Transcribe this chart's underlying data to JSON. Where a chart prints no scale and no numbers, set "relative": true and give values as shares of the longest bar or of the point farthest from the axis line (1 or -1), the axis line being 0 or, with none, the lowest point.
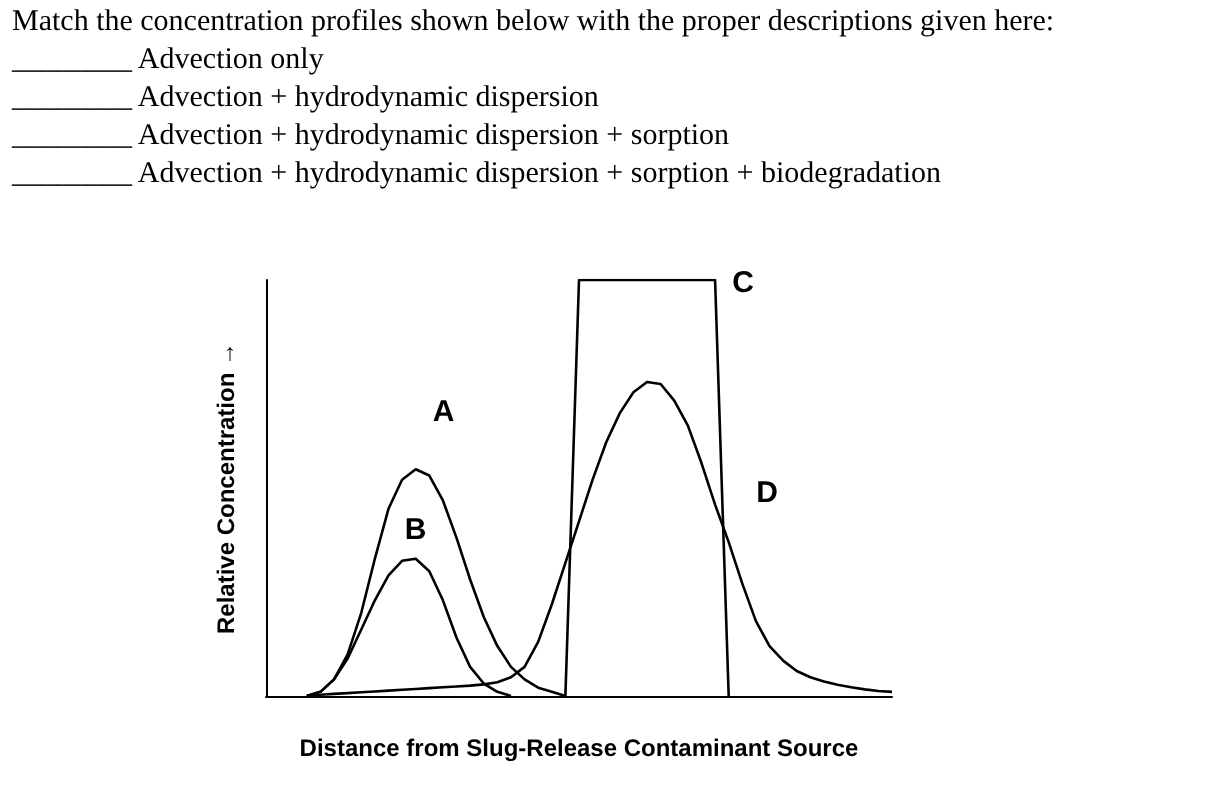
{
  "chart_data": {
    "type": "line",
    "title": "Match the concentration profiles shown below with the proper descriptions given here:",
    "annotations": [
      "________ Advection only",
      "________ Advection + hydrodynamic dispersion",
      "________ Advection + hydrodynamic dispersion + sorption",
      "________ Advection + hydrodynamic dispersion + sorption + biodegradation"
    ],
    "xlabel": "Distance from Slug-Release Contaminant Source",
    "ylabel": "Relative Concentration →",
    "relative": true,
    "marker": "none",
    "line_style": "solid",
    "grid": false,
    "categories": [
      null,
      null,
      null,
      null,
      null,
      null,
      null,
      null,
      null,
      null,
      null,
      null,
      null,
      null,
      null,
      null,
      null,
      null,
      null,
      null,
      null,
      null,
      null,
      null,
      null,
      null,
      null,
      null,
      null,
      null,
      null,
      null,
      null,
      null,
      null,
      null,
      null,
      null,
      null,
      null,
      null,
      null,
      null,
      null,
      null,
      null,
      null
    ],
    "series": [
      {
        "name": "A",
        "color": "#000000",
        "values": [
          null,
          null,
          null,
          0,
          0.01,
          0.04,
          0.1,
          0.2,
          0.33,
          0.45,
          0.52,
          0.545,
          0.53,
          0.47,
          0.38,
          0.28,
          0.19,
          0.12,
          0.07,
          0.04,
          0.02,
          0.01,
          0,
          null,
          null,
          null,
          null,
          null,
          null,
          null,
          null,
          null,
          null,
          null,
          null,
          null,
          null,
          null,
          null,
          null,
          null,
          null,
          null,
          null,
          null,
          null,
          null
        ]
      },
      {
        "name": "B",
        "color": "#000000",
        "values": [
          null,
          null,
          null,
          0,
          0.01,
          0.04,
          0.09,
          0.16,
          0.23,
          0.29,
          0.325,
          0.33,
          0.3,
          0.23,
          0.14,
          0.07,
          0.03,
          0.01,
          0,
          null,
          null,
          null,
          null,
          null,
          null,
          null,
          null,
          null,
          null,
          null,
          null,
          null,
          null,
          null,
          null,
          null,
          null,
          null,
          null,
          null,
          null,
          null,
          null,
          null,
          null,
          null,
          null
        ]
      },
      {
        "name": "C",
        "color": "#000000",
        "values": [
          null,
          null,
          null,
          null,
          null,
          null,
          null,
          null,
          null,
          null,
          null,
          null,
          null,
          null,
          null,
          null,
          null,
          null,
          null,
          null,
          null,
          null,
          0,
          1,
          1,
          1,
          1,
          1,
          1,
          1,
          1,
          1,
          1,
          1,
          0,
          null,
          null,
          null,
          null,
          null,
          null,
          null,
          null,
          null,
          null,
          null,
          null
        ]
      },
      {
        "name": "D",
        "color": "#000000",
        "values": [
          null,
          null,
          null,
          0,
          0.003,
          0.005,
          0.007,
          0.009,
          0.011,
          0.013,
          0.015,
          0.017,
          0.019,
          0.021,
          0.023,
          0.025,
          0.028,
          0.033,
          0.045,
          0.07,
          0.13,
          0.22,
          0.32,
          0.42,
          0.52,
          0.61,
          0.68,
          0.73,
          0.755,
          0.75,
          0.71,
          0.65,
          0.56,
          0.46,
          0.37,
          0.27,
          0.18,
          0.12,
          0.085,
          0.06,
          0.045,
          0.035,
          0.027,
          0.021,
          0.016,
          0.012,
          0.01
        ]
      }
    ]
  }
}
